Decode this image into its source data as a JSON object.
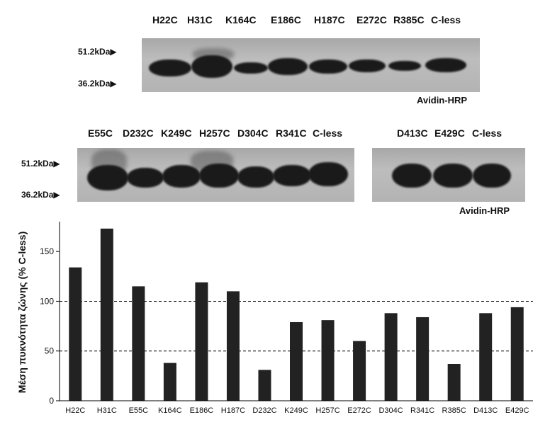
{
  "blot1": {
    "lanes": [
      "H22C",
      "H31C",
      "K164C",
      "E186C",
      "H187C",
      "E272C",
      "R385C",
      "C-less"
    ],
    "marker_high": "51.2kDa▶",
    "marker_low": "36.2kDa▶",
    "detection": "Avidin-HRP"
  },
  "blot2": {
    "lanes": [
      "E55C",
      "D232C",
      "K249C",
      "H257C",
      "D304C",
      "R341C",
      "C-less"
    ],
    "marker_high": "51.2kDa▶",
    "marker_low": "36.2kDa▶"
  },
  "blot3": {
    "lanes": [
      "D413C",
      "E429C",
      "C-less"
    ],
    "detection": "Avidin-HRP"
  },
  "chart_data": {
    "type": "bar",
    "title": "",
    "xlabel": "",
    "ylabel": "Μέση πυκνότητα ζώνης (% C-less)",
    "categories": [
      "H22C",
      "H31C",
      "E55C",
      "K164C",
      "E186C",
      "H187C",
      "D232C",
      "K249C",
      "H257C",
      "E272C",
      "D304C",
      "R341C",
      "R385C",
      "D413C",
      "E429C"
    ],
    "values": [
      134,
      173,
      115,
      38,
      119,
      110,
      31,
      79,
      81,
      60,
      88,
      84,
      37,
      88,
      94
    ],
    "ylim": [
      0,
      180
    ],
    "yticks": [
      0,
      50,
      100,
      150
    ],
    "reference_lines": [
      50,
      100
    ],
    "bar_color": "#222222",
    "grid": false
  }
}
